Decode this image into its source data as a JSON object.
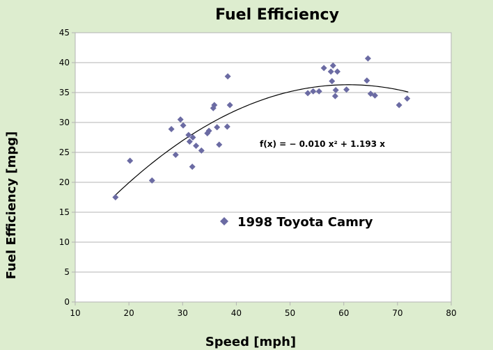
{
  "chart_data": {
    "type": "scatter",
    "title": "Fuel Efficiency",
    "xlabel": "Speed [mph]",
    "ylabel": "Fuel Efficiency [mpg]",
    "xlim": [
      10,
      80
    ],
    "ylim": [
      0,
      45
    ],
    "xticks": [
      10,
      20,
      30,
      40,
      50,
      60,
      70,
      80
    ],
    "yticks": [
      0,
      5,
      10,
      15,
      20,
      25,
      30,
      35,
      40,
      45
    ],
    "grid": "horizontal",
    "legend_position": "center",
    "marker_color": "#6b6ba3",
    "series": [
      {
        "name": "1998 Toyota Camry",
        "points": [
          [
            17.5,
            17.5
          ],
          [
            20.2,
            23.6
          ],
          [
            24.3,
            20.3
          ],
          [
            27.9,
            28.9
          ],
          [
            28.7,
            24.6
          ],
          [
            29.6,
            30.5
          ],
          [
            30.1,
            29.5
          ],
          [
            31.1,
            27.9
          ],
          [
            31.3,
            26.8
          ],
          [
            31.8,
            22.6
          ],
          [
            31.9,
            27.5
          ],
          [
            32.5,
            26.1
          ],
          [
            33.5,
            25.3
          ],
          [
            34.6,
            28.2
          ],
          [
            34.9,
            28.6
          ],
          [
            35.7,
            32.4
          ],
          [
            35.9,
            32.9
          ],
          [
            36.4,
            29.2
          ],
          [
            36.8,
            26.3
          ],
          [
            38.3,
            29.3
          ],
          [
            38.4,
            37.7
          ],
          [
            38.8,
            32.9
          ],
          [
            53.3,
            34.9
          ],
          [
            54.3,
            35.2
          ],
          [
            55.4,
            35.2
          ],
          [
            56.3,
            39.1
          ],
          [
            57.6,
            38.5
          ],
          [
            57.8,
            36.9
          ],
          [
            58.0,
            39.5
          ],
          [
            58.4,
            34.4
          ],
          [
            58.5,
            35.4
          ],
          [
            58.8,
            38.5
          ],
          [
            60.5,
            35.5
          ],
          [
            64.3,
            37.0
          ],
          [
            64.5,
            40.7
          ],
          [
            65.0,
            34.8
          ],
          [
            65.8,
            34.5
          ],
          [
            70.3,
            32.9
          ],
          [
            71.8,
            34.0
          ]
        ]
      }
    ],
    "trendline": {
      "equation": "f(x) = − 0.010 x² + 1.193 x",
      "a": -0.0098,
      "b": 1.193,
      "x_range": [
        17.5,
        72
      ]
    }
  }
}
